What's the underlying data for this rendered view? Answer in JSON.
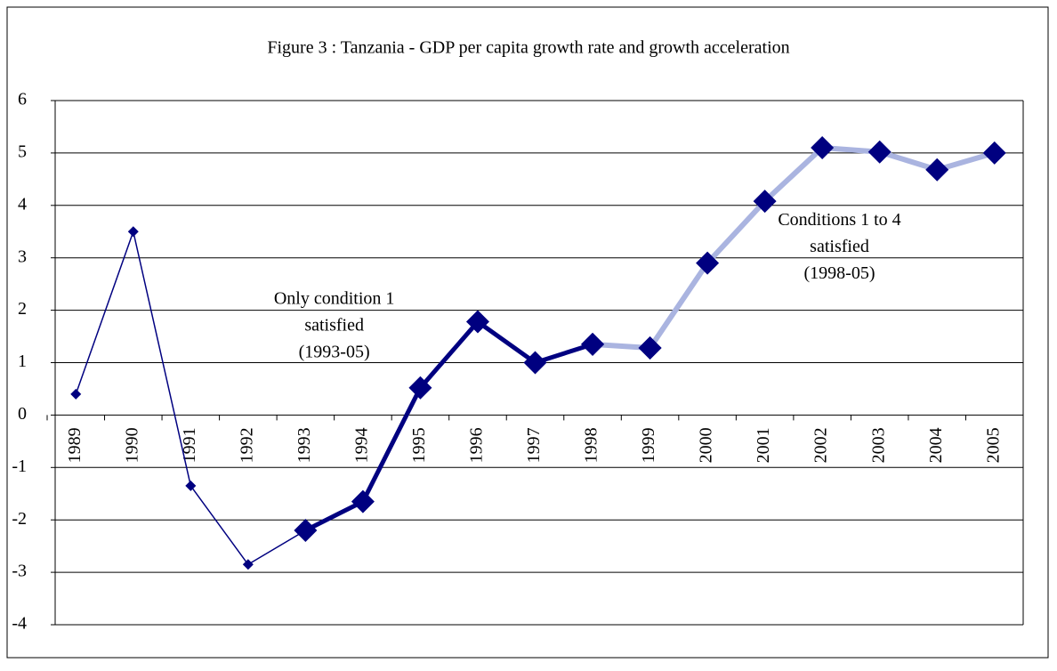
{
  "chart_data": {
    "type": "line",
    "title": "Figure 3 : Tanzania - GDP per capita growth rate and growth acceleration",
    "categories": [
      "1989",
      "1990",
      "1991",
      "1992",
      "1993",
      "1994",
      "1995",
      "1996",
      "1997",
      "1998",
      "1999",
      "2000",
      "2001",
      "2002",
      "2003",
      "2004",
      "2005"
    ],
    "series": [
      {
        "color": "#000080",
        "line_width": 1.5,
        "marker_size": 6,
        "marker_color": "#000080",
        "values": [
          0.4,
          3.5,
          -1.35,
          -2.85,
          -2.2,
          null,
          null,
          null,
          null,
          null,
          null,
          null,
          null,
          null,
          null,
          null,
          null
        ]
      },
      {
        "color": "#000080",
        "line_width": 5,
        "marker_size": 13,
        "marker_color": "#000080",
        "values": [
          null,
          null,
          null,
          null,
          -2.2,
          -1.65,
          0.52,
          1.78,
          1.0,
          1.35,
          1.28,
          null,
          null,
          null,
          null,
          null,
          null
        ]
      },
      {
        "color": "#aab4e0",
        "line_width": 6,
        "marker_size": 13,
        "marker_color": "#000080",
        "values": [
          null,
          null,
          null,
          null,
          null,
          null,
          null,
          null,
          null,
          1.35,
          1.28,
          2.9,
          4.08,
          5.1,
          5.02,
          4.68,
          5.0
        ]
      }
    ],
    "annotations": [
      {
        "lines": [
          "Only condition 1",
          "satisfied",
          "(1993-05)"
        ],
        "x": 1993.5,
        "y": 2.2
      },
      {
        "lines": [
          "Conditions 1 to 4",
          "satisfied",
          "(1998-05)"
        ],
        "x": 2002.3,
        "y": 3.7
      }
    ],
    "ylim": [
      -4,
      6
    ],
    "yticks": [
      -4,
      -3,
      -2,
      -1,
      0,
      1,
      2,
      3,
      4,
      5,
      6
    ],
    "grid": true
  }
}
